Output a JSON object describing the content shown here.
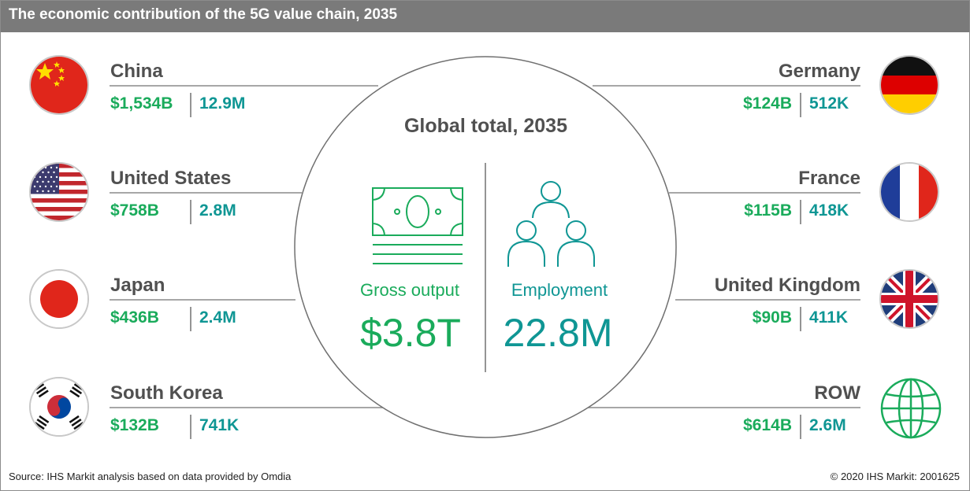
{
  "title": "The economic contribution of the 5G value chain, 2035",
  "global": {
    "title": "Global total, 2035",
    "gross_output_label": "Gross output",
    "gross_output_value": "$3.8T",
    "employment_label": "Employment",
    "employment_value": "22.8M"
  },
  "countries_left": [
    {
      "name": "China",
      "gross_output": "$1,534B",
      "employment": "12.9M",
      "flag_icon": "china-flag-icon"
    },
    {
      "name": "United States",
      "gross_output": "$758B",
      "employment": "2.8M",
      "flag_icon": "usa-flag-icon"
    },
    {
      "name": "Japan",
      "gross_output": "$436B",
      "employment": "2.4M",
      "flag_icon": "japan-flag-icon"
    },
    {
      "name": "South Korea",
      "gross_output": "$132B",
      "employment": "741K",
      "flag_icon": "south-korea-flag-icon"
    }
  ],
  "countries_right": [
    {
      "name": "Germany",
      "gross_output": "$124B",
      "employment": "512K",
      "flag_icon": "germany-flag-icon"
    },
    {
      "name": "France",
      "gross_output": "$115B",
      "employment": "418K",
      "flag_icon": "france-flag-icon"
    },
    {
      "name": "United Kingdom",
      "gross_output": "$90B",
      "employment": "411K",
      "flag_icon": "uk-flag-icon"
    },
    {
      "name": "ROW",
      "gross_output": "$614B",
      "employment": "2.6M",
      "flag_icon": "globe-icon"
    }
  ],
  "source": "Source: IHS Markit analysis based on data provided by Omdia",
  "copyright": "© 2020 IHS Markit: 2001625",
  "colors": {
    "header_bg": "#7a7a7a",
    "gross_output": "#1aab5b",
    "employment": "#0f9694",
    "text": "#505050"
  }
}
